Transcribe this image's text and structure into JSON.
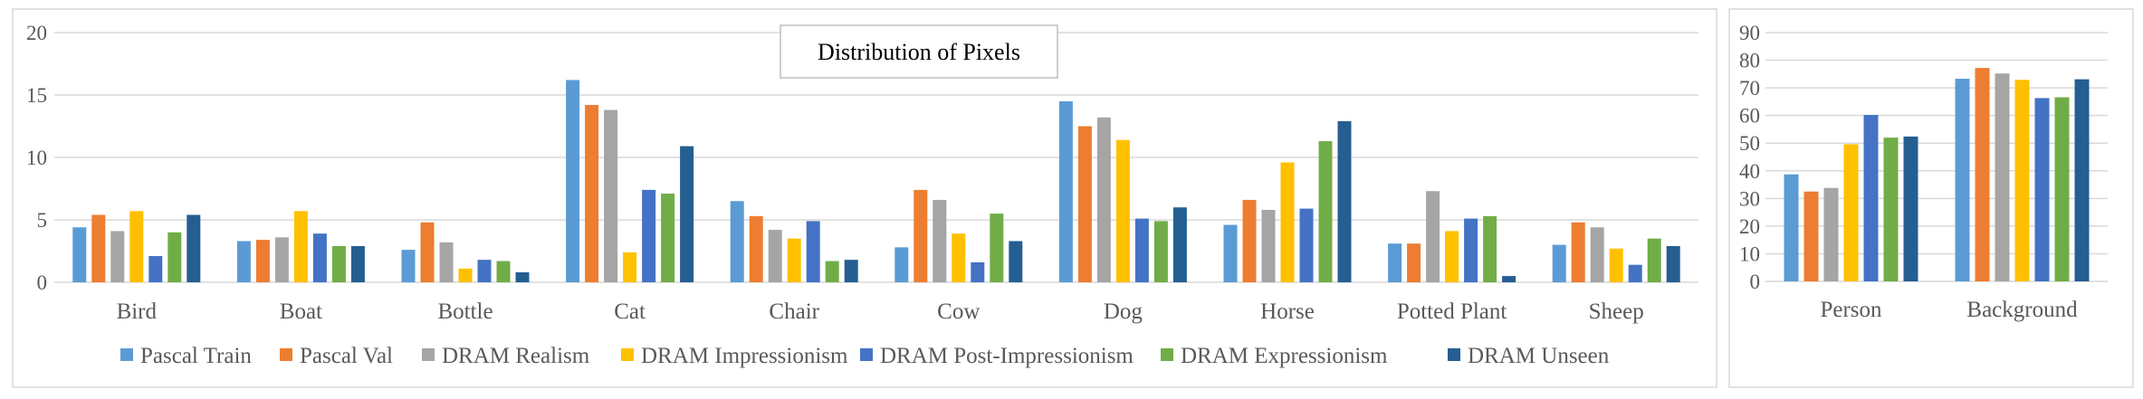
{
  "chart_data": [
    {
      "type": "bar",
      "title": "Distribution of Pixels",
      "categories": [
        "Bird",
        "Boat",
        "Bottle",
        "Cat",
        "Chair",
        "Cow",
        "Dog",
        "Horse",
        "Potted Plant",
        "Sheep"
      ],
      "ylim": [
        0,
        20
      ],
      "yticks": [
        "0",
        "5",
        "10",
        "15",
        "20"
      ],
      "grid": true,
      "legend_position": "bottom",
      "series": [
        {
          "name": "Pascal Train",
          "color": "#5B9BD5",
          "values": [
            4.4,
            3.3,
            2.6,
            16.2,
            6.5,
            2.8,
            14.5,
            4.6,
            3.1,
            3.0
          ]
        },
        {
          "name": "Pascal Val",
          "color": "#ED7D31",
          "values": [
            5.4,
            3.4,
            4.8,
            14.2,
            5.3,
            7.4,
            12.5,
            6.6,
            3.1,
            4.8
          ]
        },
        {
          "name": "DRAM Realism",
          "color": "#A5A5A5",
          "values": [
            4.1,
            3.6,
            3.2,
            13.8,
            4.2,
            6.6,
            13.2,
            5.8,
            7.3,
            4.4
          ]
        },
        {
          "name": "DRAM Impressionism",
          "color": "#FFC000",
          "values": [
            5.7,
            5.7,
            1.1,
            2.4,
            3.5,
            3.9,
            11.4,
            9.6,
            4.1,
            2.7
          ]
        },
        {
          "name": "DRAM Post-Impressionism",
          "color": "#4472C4",
          "values": [
            2.1,
            3.9,
            1.8,
            7.4,
            4.9,
            1.6,
            5.1,
            5.9,
            5.1,
            1.4
          ]
        },
        {
          "name": "DRAM Expressionism",
          "color": "#70AD47",
          "values": [
            4.0,
            2.9,
            1.7,
            7.1,
            1.7,
            5.5,
            4.9,
            11.3,
            5.3,
            3.5
          ]
        },
        {
          "name": "DRAM Unseen",
          "color": "#255E91",
          "values": [
            5.4,
            2.9,
            0.8,
            10.9,
            1.8,
            3.3,
            6.0,
            12.9,
            0.5,
            2.9
          ]
        }
      ]
    },
    {
      "type": "bar",
      "title": "",
      "categories": [
        "Person",
        "Background"
      ],
      "ylim": [
        0,
        90
      ],
      "yticks": [
        "0",
        "10",
        "20",
        "30",
        "40",
        "50",
        "60",
        "70",
        "80",
        "90"
      ],
      "grid": true,
      "series": [
        {
          "name": "Pascal Train",
          "color": "#5B9BD5",
          "values": [
            38.7,
            73.3
          ]
        },
        {
          "name": "Pascal Val",
          "color": "#ED7D31",
          "values": [
            32.5,
            77.2
          ]
        },
        {
          "name": "DRAM Realism",
          "color": "#A5A5A5",
          "values": [
            33.8,
            75.2
          ]
        },
        {
          "name": "DRAM Impressionism",
          "color": "#FFC000",
          "values": [
            49.6,
            72.9
          ]
        },
        {
          "name": "DRAM Post-Impressionism",
          "color": "#4472C4",
          "values": [
            60.2,
            66.3
          ]
        },
        {
          "name": "DRAM Expressionism",
          "color": "#70AD47",
          "values": [
            52.0,
            66.6
          ]
        },
        {
          "name": "DRAM Unseen",
          "color": "#255E91",
          "values": [
            52.4,
            73.1
          ]
        }
      ]
    }
  ]
}
